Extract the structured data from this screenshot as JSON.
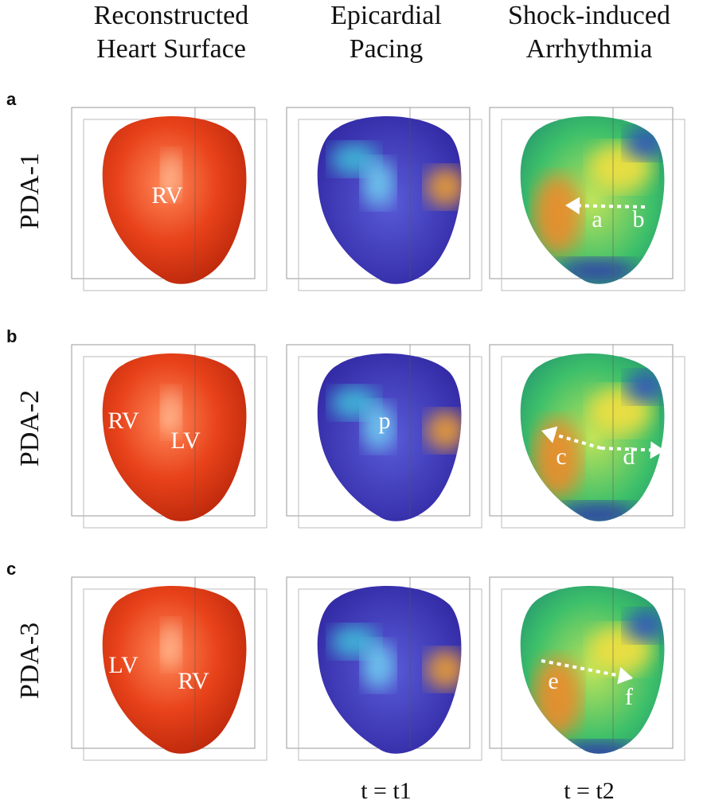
{
  "columns": [
    {
      "lines": [
        "Reconstructed",
        "Heart Surface"
      ]
    },
    {
      "lines": [
        "Epicardial",
        "Pacing"
      ]
    },
    {
      "lines": [
        "Shock-induced",
        "Arrhythmia"
      ]
    }
  ],
  "rows": [
    {
      "panel": "a",
      "label": "PDA-1",
      "labels": {
        "surface": [
          "RV"
        ],
        "arrhythmia": [
          "a",
          "b"
        ]
      }
    },
    {
      "panel": "b",
      "label": "PDA-2",
      "labels": {
        "surface": [
          "RV",
          "LV"
        ],
        "pacing": [
          "p"
        ],
        "arrhythmia": [
          "c",
          "d"
        ]
      }
    },
    {
      "panel": "c",
      "label": "PDA-3",
      "labels": {
        "surface": [
          "LV",
          "RV"
        ],
        "arrhythmia": [
          "e",
          "f"
        ]
      }
    }
  ],
  "footer": {
    "times": [
      "t = t1",
      "t = t2"
    ]
  }
}
